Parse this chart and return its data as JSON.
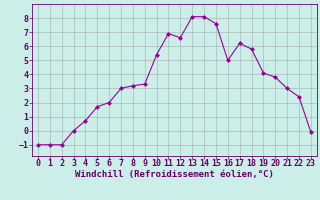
{
  "x": [
    0,
    1,
    2,
    3,
    4,
    5,
    6,
    7,
    8,
    9,
    10,
    11,
    12,
    13,
    14,
    15,
    16,
    17,
    18,
    19,
    20,
    21,
    22,
    23
  ],
  "y": [
    -1,
    -1,
    -1,
    0,
    0.7,
    1.7,
    2,
    3.0,
    3.2,
    3.3,
    5.4,
    6.9,
    6.6,
    8.1,
    8.1,
    7.6,
    5.0,
    6.2,
    5.8,
    4.1,
    3.8,
    3.0,
    2.4,
    -0.1
  ],
  "line_color": "#990099",
  "marker": "D",
  "marker_size": 2.0,
  "bg_color": "#cceee8",
  "grid_color": "#aabbbb",
  "xlabel": "Windchill (Refroidissement éolien,°C)",
  "xlabel_fontsize": 6.5,
  "xlim": [
    -0.5,
    23.5
  ],
  "ylim": [
    -1.8,
    9.0
  ],
  "yticks": [
    -1,
    0,
    1,
    2,
    3,
    4,
    5,
    6,
    7,
    8
  ],
  "xticks": [
    0,
    1,
    2,
    3,
    4,
    5,
    6,
    7,
    8,
    9,
    10,
    11,
    12,
    13,
    14,
    15,
    16,
    17,
    18,
    19,
    20,
    21,
    22,
    23
  ],
  "tick_fontsize": 6.0,
  "tick_color": "#660066",
  "spine_color": "#660066"
}
